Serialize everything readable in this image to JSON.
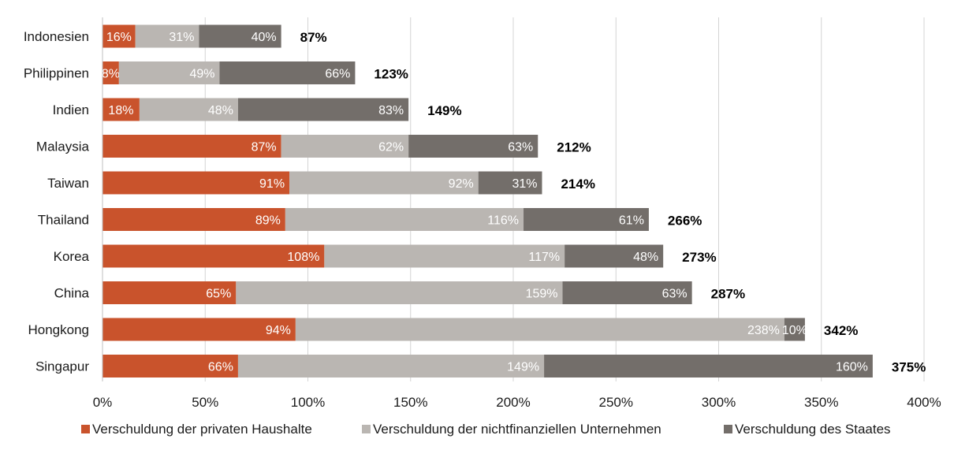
{
  "chart_data": {
    "type": "bar",
    "orientation": "horizontal",
    "stacked": true,
    "categories": [
      "Indonesien",
      "Philippinen",
      "Indien",
      "Malaysia",
      "Taiwan",
      "Thailand",
      "Korea",
      "China",
      "Hongkong",
      "Singapur"
    ],
    "series": [
      {
        "name": "Verschuldung der privaten Haushalte",
        "color": "#c9532c",
        "values": [
          16,
          8,
          18,
          87,
          91,
          89,
          108,
          65,
          94,
          66
        ],
        "labels": [
          "16%",
          "8%",
          "18%",
          "87%",
          "91%",
          "89%",
          "108%",
          "65%",
          "94%",
          "66%"
        ]
      },
      {
        "name": "Verschuldung der nichtfinanziellen Unternehmen",
        "color": "#bab6b2",
        "values": [
          31,
          49,
          48,
          62,
          92,
          116,
          117,
          159,
          238,
          149
        ],
        "labels": [
          "31%",
          "49%",
          "48%",
          "62%",
          "92%",
          "116%",
          "117%",
          "159%",
          "238%",
          "149%"
        ]
      },
      {
        "name": "Verschuldung des Staates",
        "color": "#736e6a",
        "values": [
          40,
          66,
          83,
          63,
          31,
          61,
          48,
          63,
          10,
          160
        ],
        "labels": [
          "40%",
          "66%",
          "83%",
          "63%",
          "31%",
          "61%",
          "48%",
          "63%",
          "10%",
          "160%"
        ]
      }
    ],
    "totals": [
      "87%",
      "123%",
      "149%",
      "212%",
      "214%",
      "266%",
      "273%",
      "287%",
      "342%",
      "375%"
    ],
    "xlim": [
      0,
      400
    ],
    "xticks": [
      0,
      50,
      100,
      150,
      200,
      250,
      300,
      350,
      400
    ],
    "xtick_labels": [
      "0%",
      "50%",
      "100%",
      "150%",
      "200%",
      "250%",
      "300%",
      "350%",
      "400%"
    ],
    "grid": true,
    "legend_position": "bottom"
  }
}
